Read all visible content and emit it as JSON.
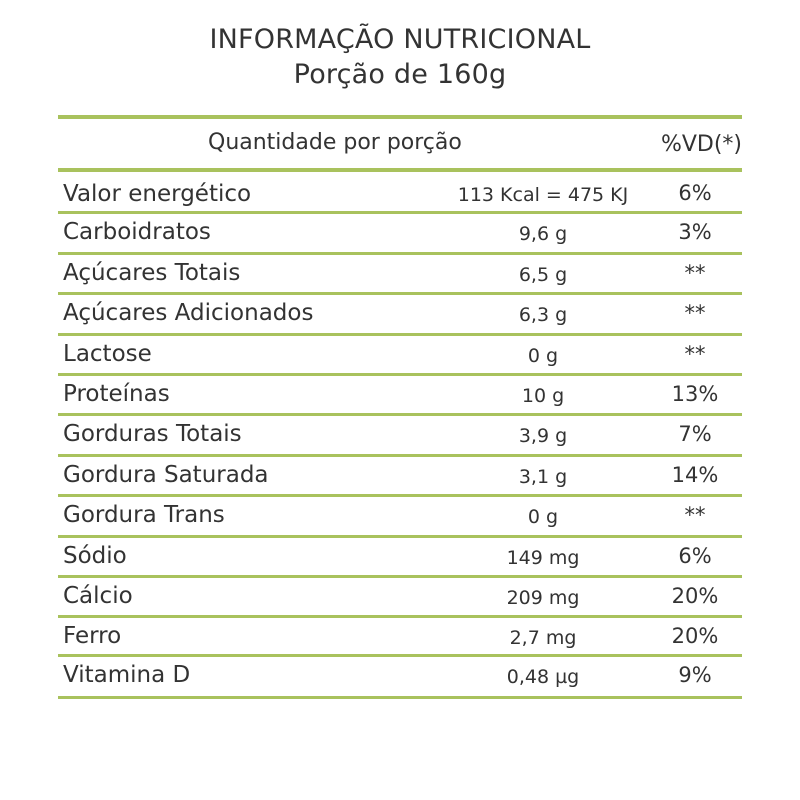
{
  "title": {
    "line1": "INFORMAÇÃO NUTRICIONAL",
    "line2": "Porção de 160g"
  },
  "table": {
    "header": {
      "quantity_label": "Quantidade por porção",
      "dv_label": "%VD(*)"
    },
    "rows": [
      {
        "name": "Valor energético",
        "amount": "113 Kcal = 475 KJ",
        "dv": "6%"
      },
      {
        "name": "Carboidratos",
        "amount": "9,6 g",
        "dv": "3%"
      },
      {
        "name": "Açúcares Totais",
        "amount": "6,5 g",
        "dv": "**"
      },
      {
        "name": "Açúcares Adicionados",
        "amount": "6,3 g",
        "dv": "**"
      },
      {
        "name": "Lactose",
        "amount": "0 g",
        "dv": "**"
      },
      {
        "name": "Proteínas",
        "amount": "10 g",
        "dv": "13%"
      },
      {
        "name": "Gorduras Totais",
        "amount": "3,9 g",
        "dv": "7%"
      },
      {
        "name": "Gordura Saturada",
        "amount": "3,1 g",
        "dv": "14%"
      },
      {
        "name": "Gordura Trans",
        "amount": "0 g",
        "dv": "**"
      },
      {
        "name": "Sódio",
        "amount": "149 mg",
        "dv": "6%"
      },
      {
        "name": "Cálcio",
        "amount": "209 mg",
        "dv": "20%"
      },
      {
        "name": "Ferro",
        "amount": "2,7 mg",
        "dv": "20%"
      },
      {
        "name": "Vitamina D",
        "amount": "0,48 µg",
        "dv": "9%"
      }
    ]
  },
  "colors": {
    "rule": "#a9c25d",
    "text": "#333333"
  }
}
